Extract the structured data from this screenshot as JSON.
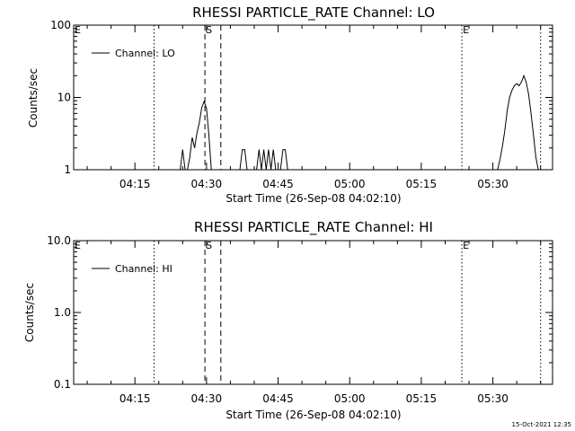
{
  "footer": {
    "timestamp": "15-Oct-2021 12:35"
  },
  "chart_data": [
    {
      "type": "line",
      "title": "RHESSI PARTICLE_RATE Channel: LO",
      "xlabel": "Start Time (26-Sep-08 04:02:10)",
      "ylabel": "Counts/sec",
      "yscale": "log",
      "ylim": [
        1,
        100
      ],
      "y_ticks": [
        {
          "value": 1,
          "label": "1"
        },
        {
          "value": 10,
          "label": "10"
        },
        {
          "value": 100,
          "label": "100"
        }
      ],
      "xlim": [
        "04:02:10",
        "05:42:30"
      ],
      "x_ticks": [
        "04:15",
        "04:30",
        "04:45",
        "05:00",
        "05:15",
        "05:30"
      ],
      "legend": {
        "position": "top-left",
        "entries": [
          "Channel: LO"
        ]
      },
      "markers": [
        {
          "label": "E",
          "time": "04:02:10",
          "style": "dotted"
        },
        {
          "label": "",
          "time": "04:19:00",
          "style": "dotted"
        },
        {
          "label": "S",
          "time": "04:29:40",
          "style": "dashed"
        },
        {
          "label": "",
          "time": "04:33:00",
          "style": "dashed"
        },
        {
          "label": "E",
          "time": "05:23:30",
          "style": "dotted"
        },
        {
          "label": "",
          "time": "05:40:00",
          "style": "dotted"
        }
      ],
      "series": [
        {
          "name": "Channel: LO",
          "x": [
            "04:24:30",
            "04:25:00",
            "04:25:30",
            "04:26:00",
            "04:26:30",
            "04:27:00",
            "04:27:30",
            "04:28:00",
            "04:28:30",
            "04:29:00",
            "04:29:30",
            "04:30:00",
            "04:30:30",
            "04:31:00",
            "04:31:30",
            "04:32:00",
            "04:32:30",
            "04:37:00",
            "04:37:30",
            "04:38:00",
            "04:38:30",
            "04:40:30",
            "04:41:00",
            "04:41:30",
            "04:42:00",
            "04:42:30",
            "04:43:00",
            "04:43:30",
            "04:44:00",
            "04:44:30",
            "04:45:00",
            "04:45:30",
            "04:46:00",
            "04:46:30",
            "04:47:00",
            "05:31:00",
            "05:31:30",
            "05:32:00",
            "05:32:30",
            "05:33:00",
            "05:33:30",
            "05:34:00",
            "05:34:30",
            "05:35:00",
            "05:35:30",
            "05:36:00",
            "05:36:30",
            "05:37:00",
            "05:37:30",
            "05:38:00",
            "05:38:30",
            "05:39:00",
            "05:39:30",
            "05:40:00"
          ],
          "values": [
            1,
            1.9,
            1,
            1,
            1.5,
            2.8,
            2,
            3.2,
            4.5,
            7.2,
            8.8,
            7,
            3,
            1,
            1,
            1,
            1,
            1,
            1.9,
            1.9,
            1,
            1,
            1.9,
            1,
            1.9,
            1,
            1.9,
            1,
            1.9,
            1,
            1,
            1,
            1.9,
            1.9,
            1,
            1,
            1.4,
            2.1,
            3.5,
            6.5,
            10,
            12.5,
            14.5,
            15.5,
            14.5,
            16.5,
            20,
            16,
            11,
            6,
            3,
            1.5,
            1,
            1
          ]
        }
      ]
    },
    {
      "type": "line",
      "title": "RHESSI PARTICLE_RATE Channel: HI",
      "xlabel": "Start Time (26-Sep-08 04:02:10)",
      "ylabel": "Counts/sec",
      "yscale": "log",
      "ylim": [
        0.1,
        10
      ],
      "y_ticks": [
        {
          "value": 0.1,
          "label": "0.1"
        },
        {
          "value": 1,
          "label": "1.0"
        },
        {
          "value": 10,
          "label": "10.0"
        }
      ],
      "xlim": [
        "04:02:10",
        "05:42:30"
      ],
      "x_ticks": [
        "04:15",
        "04:30",
        "04:45",
        "05:00",
        "05:15",
        "05:30"
      ],
      "legend": {
        "position": "top-left",
        "entries": [
          "Channel: HI"
        ]
      },
      "markers": [
        {
          "label": "E",
          "time": "04:02:10",
          "style": "dotted"
        },
        {
          "label": "",
          "time": "04:19:00",
          "style": "dotted"
        },
        {
          "label": "S",
          "time": "04:29:40",
          "style": "dashed"
        },
        {
          "label": "",
          "time": "04:33:00",
          "style": "dashed"
        },
        {
          "label": "E",
          "time": "05:23:30",
          "style": "dotted"
        },
        {
          "label": "",
          "time": "05:40:00",
          "style": "dotted"
        }
      ],
      "series": [
        {
          "name": "Channel: HI",
          "x": [],
          "values": []
        }
      ]
    }
  ]
}
